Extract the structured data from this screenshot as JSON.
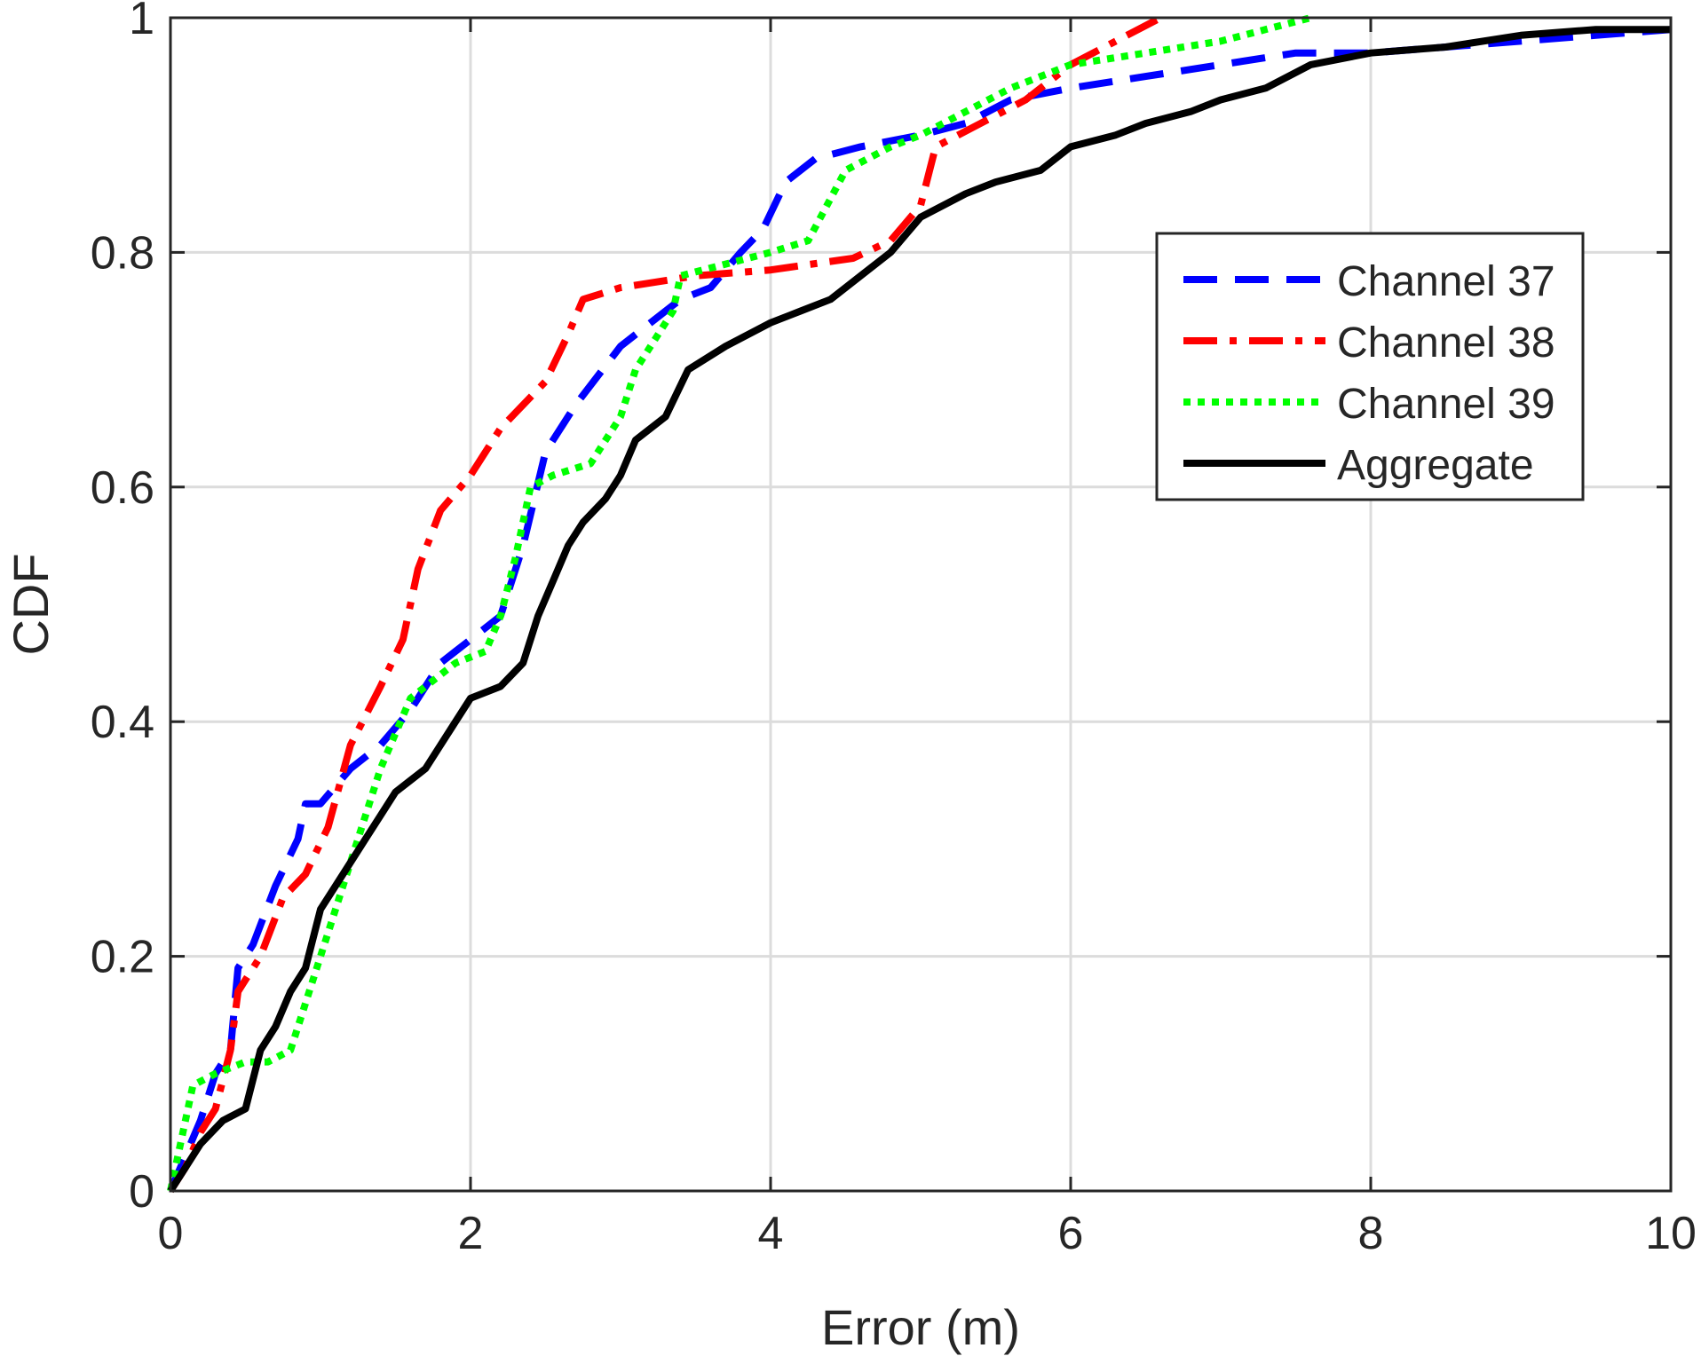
{
  "chart_data": {
    "type": "line",
    "title": "",
    "xlabel": "Error (m)",
    "ylabel": "CDF",
    "xlim": [
      0,
      10
    ],
    "ylim": [
      0,
      1
    ],
    "xticks": [
      "0",
      "2",
      "4",
      "6",
      "8",
      "10"
    ],
    "yticks": [
      "0",
      "0.2",
      "0.4",
      "0.6",
      "0.8",
      "1"
    ],
    "grid": true,
    "legend_position": "top-right",
    "series": [
      {
        "name": "Channel 37",
        "color": "#0000ff",
        "style": "dashed",
        "points": [
          [
            0,
            0
          ],
          [
            0.1,
            0.03
          ],
          [
            0.2,
            0.06
          ],
          [
            0.3,
            0.1
          ],
          [
            0.4,
            0.12
          ],
          [
            0.45,
            0.19
          ],
          [
            0.55,
            0.21
          ],
          [
            0.7,
            0.26
          ],
          [
            0.85,
            0.3
          ],
          [
            0.9,
            0.33
          ],
          [
            1.0,
            0.33
          ],
          [
            1.2,
            0.36
          ],
          [
            1.4,
            0.38
          ],
          [
            1.6,
            0.41
          ],
          [
            1.8,
            0.45
          ],
          [
            2.0,
            0.47
          ],
          [
            2.2,
            0.49
          ],
          [
            2.35,
            0.55
          ],
          [
            2.5,
            0.63
          ],
          [
            2.7,
            0.67
          ],
          [
            3.0,
            0.72
          ],
          [
            3.2,
            0.74
          ],
          [
            3.4,
            0.76
          ],
          [
            3.6,
            0.77
          ],
          [
            3.8,
            0.8
          ],
          [
            3.95,
            0.82
          ],
          [
            4.1,
            0.86
          ],
          [
            4.3,
            0.88
          ],
          [
            4.6,
            0.89
          ],
          [
            5.0,
            0.9
          ],
          [
            5.3,
            0.91
          ],
          [
            5.6,
            0.93
          ],
          [
            6.0,
            0.94
          ],
          [
            6.5,
            0.95
          ],
          [
            7.0,
            0.96
          ],
          [
            7.5,
            0.97
          ],
          [
            8.0,
            0.97
          ],
          [
            8.5,
            0.975
          ],
          [
            9.0,
            0.98
          ],
          [
            9.5,
            0.985
          ],
          [
            10.0,
            0.99
          ]
        ]
      },
      {
        "name": "Channel 38",
        "color": "#ff0000",
        "style": "dashdot",
        "points": [
          [
            0,
            0
          ],
          [
            0.1,
            0.02
          ],
          [
            0.2,
            0.05
          ],
          [
            0.3,
            0.07
          ],
          [
            0.4,
            0.12
          ],
          [
            0.45,
            0.17
          ],
          [
            0.6,
            0.2
          ],
          [
            0.75,
            0.25
          ],
          [
            0.9,
            0.27
          ],
          [
            1.05,
            0.31
          ],
          [
            1.2,
            0.38
          ],
          [
            1.4,
            0.43
          ],
          [
            1.55,
            0.47
          ],
          [
            1.65,
            0.53
          ],
          [
            1.8,
            0.58
          ],
          [
            2.0,
            0.61
          ],
          [
            2.2,
            0.65
          ],
          [
            2.5,
            0.69
          ],
          [
            2.65,
            0.73
          ],
          [
            2.75,
            0.76
          ],
          [
            3.0,
            0.77
          ],
          [
            3.5,
            0.78
          ],
          [
            4.0,
            0.785
          ],
          [
            4.55,
            0.795
          ],
          [
            4.8,
            0.81
          ],
          [
            5.0,
            0.84
          ],
          [
            5.1,
            0.89
          ],
          [
            5.4,
            0.91
          ],
          [
            5.7,
            0.93
          ],
          [
            6.0,
            0.96
          ],
          [
            6.3,
            0.98
          ],
          [
            6.6,
            1.0
          ]
        ]
      },
      {
        "name": "Channel 39",
        "color": "#00ff00",
        "style": "dotted",
        "points": [
          [
            0,
            0
          ],
          [
            0.15,
            0.09
          ],
          [
            0.3,
            0.1
          ],
          [
            0.5,
            0.11
          ],
          [
            0.65,
            0.11
          ],
          [
            0.8,
            0.12
          ],
          [
            0.9,
            0.16
          ],
          [
            1.05,
            0.22
          ],
          [
            1.2,
            0.28
          ],
          [
            1.4,
            0.36
          ],
          [
            1.6,
            0.42
          ],
          [
            1.9,
            0.45
          ],
          [
            2.1,
            0.46
          ],
          [
            2.2,
            0.49
          ],
          [
            2.3,
            0.54
          ],
          [
            2.4,
            0.6
          ],
          [
            2.55,
            0.61
          ],
          [
            2.8,
            0.62
          ],
          [
            3.0,
            0.66
          ],
          [
            3.1,
            0.7
          ],
          [
            3.2,
            0.72
          ],
          [
            3.35,
            0.75
          ],
          [
            3.4,
            0.78
          ],
          [
            3.7,
            0.79
          ],
          [
            4.0,
            0.8
          ],
          [
            4.25,
            0.81
          ],
          [
            4.5,
            0.87
          ],
          [
            4.8,
            0.89
          ],
          [
            5.0,
            0.9
          ],
          [
            5.3,
            0.92
          ],
          [
            5.6,
            0.94
          ],
          [
            6.0,
            0.96
          ],
          [
            6.5,
            0.97
          ],
          [
            7.0,
            0.98
          ],
          [
            7.6,
            1.0
          ]
        ]
      },
      {
        "name": "Aggregate",
        "color": "#000000",
        "style": "solid",
        "points": [
          [
            0,
            0
          ],
          [
            0.1,
            0.02
          ],
          [
            0.2,
            0.04
          ],
          [
            0.35,
            0.06
          ],
          [
            0.5,
            0.07
          ],
          [
            0.6,
            0.12
          ],
          [
            0.7,
            0.14
          ],
          [
            0.8,
            0.17
          ],
          [
            0.9,
            0.19
          ],
          [
            1.0,
            0.24
          ],
          [
            1.1,
            0.26
          ],
          [
            1.2,
            0.28
          ],
          [
            1.3,
            0.3
          ],
          [
            1.4,
            0.32
          ],
          [
            1.5,
            0.34
          ],
          [
            1.6,
            0.35
          ],
          [
            1.7,
            0.36
          ],
          [
            1.8,
            0.38
          ],
          [
            1.9,
            0.4
          ],
          [
            2.0,
            0.42
          ],
          [
            2.2,
            0.43
          ],
          [
            2.35,
            0.45
          ],
          [
            2.45,
            0.49
          ],
          [
            2.55,
            0.52
          ],
          [
            2.65,
            0.55
          ],
          [
            2.75,
            0.57
          ],
          [
            2.9,
            0.59
          ],
          [
            3.0,
            0.61
          ],
          [
            3.1,
            0.64
          ],
          [
            3.3,
            0.66
          ],
          [
            3.45,
            0.7
          ],
          [
            3.7,
            0.72
          ],
          [
            4.0,
            0.74
          ],
          [
            4.2,
            0.75
          ],
          [
            4.4,
            0.76
          ],
          [
            4.6,
            0.78
          ],
          [
            4.8,
            0.8
          ],
          [
            5.0,
            0.83
          ],
          [
            5.3,
            0.85
          ],
          [
            5.5,
            0.86
          ],
          [
            5.8,
            0.87
          ],
          [
            6.0,
            0.89
          ],
          [
            6.3,
            0.9
          ],
          [
            6.5,
            0.91
          ],
          [
            6.8,
            0.92
          ],
          [
            7.0,
            0.93
          ],
          [
            7.3,
            0.94
          ],
          [
            7.6,
            0.96
          ],
          [
            8.0,
            0.97
          ],
          [
            8.5,
            0.975
          ],
          [
            9.0,
            0.985
          ],
          [
            9.5,
            0.99
          ],
          [
            10.0,
            0.99
          ]
        ]
      }
    ]
  }
}
